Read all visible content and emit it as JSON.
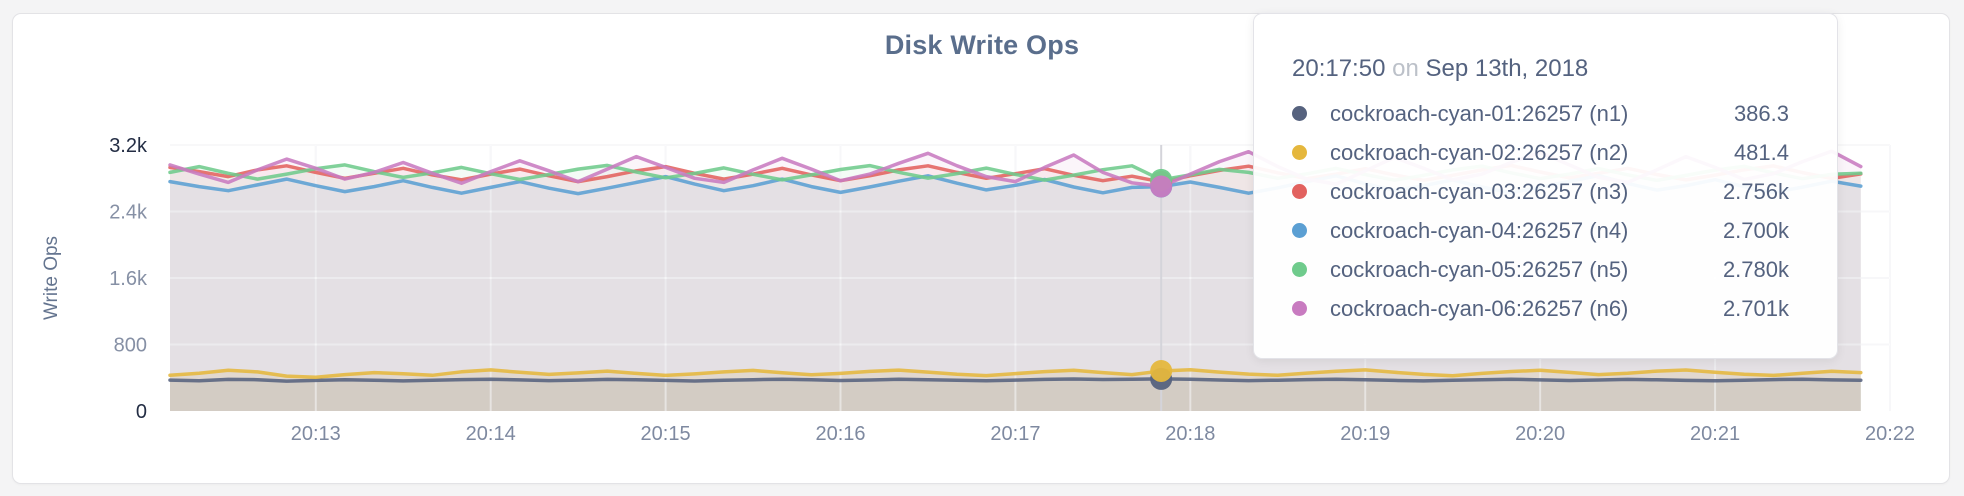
{
  "card": {
    "kind": "metric-graph-panel"
  },
  "chart_data": {
    "type": "line",
    "title": "Disk Write Ops",
    "xlabel": "",
    "ylabel": "Write Ops",
    "ylim": [
      0,
      3200
    ],
    "grid": true,
    "legend_position": "tooltip-only",
    "yticks": [
      {
        "v": 0,
        "label": "0",
        "emph": true
      },
      {
        "v": 800,
        "label": "800",
        "emph": false
      },
      {
        "v": 1600,
        "label": "1.6k",
        "emph": false
      },
      {
        "v": 2400,
        "label": "2.4k",
        "emph": false
      },
      {
        "v": 3200,
        "label": "3.2k",
        "emph": true
      }
    ],
    "xticks": [
      {
        "t": 780,
        "label": "20:13"
      },
      {
        "t": 840,
        "label": "20:14"
      },
      {
        "t": 900,
        "label": "20:15"
      },
      {
        "t": 960,
        "label": "20:16"
      },
      {
        "t": 1020,
        "label": "20:17"
      },
      {
        "t": 1080,
        "label": "20:18"
      },
      {
        "t": 1140,
        "label": "20:19"
      },
      {
        "t": 1200,
        "label": "20:20"
      },
      {
        "t": 1260,
        "label": "20:21"
      },
      {
        "t": 1320,
        "label": "20:22"
      }
    ],
    "x_domain_s": [
      730,
      1320
    ],
    "sample_start_s": 730,
    "sample_step_s": 10,
    "hover": {
      "time_s": 1070,
      "index": 34
    },
    "series": [
      {
        "id": "n1",
        "name": "cockroach-cyan-01:26257 (n1)",
        "color": "#56627e",
        "fill_opacity": 0.12,
        "values": [
          372,
          365,
          380,
          376,
          360,
          368,
          375,
          370,
          362,
          371,
          378,
          383,
          374,
          366,
          372,
          380,
          376,
          368,
          361,
          369,
          377,
          382,
          375,
          367,
          373,
          381,
          377,
          370,
          363,
          372,
          380,
          385,
          379,
          383,
          386,
          381,
          373,
          366,
          371,
          378,
          383,
          376,
          368,
          362,
          370,
          377,
          382,
          374,
          367,
          373,
          380,
          375,
          368,
          363,
          371,
          378,
          382,
          374,
          369
        ]
      },
      {
        "id": "n2",
        "name": "cockroach-cyan-02:26257 (n2)",
        "color": "#e5b73d",
        "fill_opacity": 0.15,
        "values": [
          430,
          455,
          490,
          470,
          420,
          405,
          438,
          462,
          448,
          430,
          472,
          495,
          465,
          440,
          458,
          480,
          452,
          428,
          446,
          470,
          488,
          460,
          435,
          452,
          476,
          492,
          468,
          442,
          426,
          450,
          474,
          490,
          462,
          438,
          481,
          496,
          468,
          444,
          430,
          456,
          478,
          494,
          466,
          440,
          425,
          452,
          475,
          490,
          464,
          438,
          455,
          480,
          493,
          467,
          441,
          428,
          453,
          477,
          462
        ]
      },
      {
        "id": "n3",
        "name": "cockroach-cyan-03:26257 (n3)",
        "color": "#e2625f",
        "fill_opacity": 0.075,
        "values": [
          2930,
          2880,
          2820,
          2900,
          2950,
          2870,
          2800,
          2860,
          2920,
          2840,
          2780,
          2850,
          2910,
          2830,
          2760,
          2820,
          2890,
          2940,
          2860,
          2790,
          2850,
          2920,
          2840,
          2770,
          2830,
          2900,
          2950,
          2870,
          2800,
          2855,
          2915,
          2835,
          2770,
          2825,
          2756,
          2830,
          2895,
          2945,
          2865,
          2795,
          2850,
          2915,
          2840,
          2775,
          2835,
          2900,
          2955,
          2875,
          2805,
          2860,
          2920,
          2845,
          2780,
          2838,
          2902,
          2948,
          2868,
          2798,
          2852
        ]
      },
      {
        "id": "n4",
        "name": "cockroach-cyan-04:26257 (n4)",
        "color": "#5b9fd3",
        "fill_opacity": 0.075,
        "values": [
          2760,
          2700,
          2650,
          2720,
          2790,
          2710,
          2640,
          2700,
          2770,
          2690,
          2620,
          2690,
          2760,
          2680,
          2615,
          2680,
          2750,
          2820,
          2730,
          2650,
          2710,
          2790,
          2700,
          2630,
          2695,
          2765,
          2830,
          2740,
          2660,
          2715,
          2785,
          2695,
          2625,
          2690,
          2700,
          2755,
          2690,
          2620,
          2685,
          2760,
          2830,
          2735,
          2655,
          2710,
          2780,
          2695,
          2625,
          2692,
          2762,
          2832,
          2738,
          2658,
          2712,
          2782,
          2698,
          2628,
          2694,
          2764,
          2705
        ]
      },
      {
        "id": "n5",
        "name": "cockroach-cyan-05:26257 (n5)",
        "color": "#6fcb8c",
        "fill_opacity": 0.075,
        "values": [
          2870,
          2940,
          2860,
          2790,
          2850,
          2915,
          2960,
          2880,
          2810,
          2865,
          2930,
          2855,
          2785,
          2845,
          2910,
          2955,
          2875,
          2805,
          2858,
          2925,
          2848,
          2780,
          2840,
          2905,
          2952,
          2872,
          2802,
          2856,
          2922,
          2846,
          2778,
          2838,
          2903,
          2950,
          2780,
          2840,
          2906,
          2870,
          2800,
          2854,
          2918,
          2844,
          2776,
          2836,
          2900,
          2946,
          2866,
          2796,
          2850,
          2916,
          2842,
          2774,
          2834,
          2898,
          2944,
          2864,
          2794,
          2848,
          2860
        ]
      },
      {
        "id": "n6",
        "name": "cockroach-cyan-06:26257 (n6)",
        "color": "#c87bc0",
        "fill_opacity": 0.075,
        "values": [
          2960,
          2850,
          2750,
          2900,
          3030,
          2920,
          2790,
          2870,
          2990,
          2860,
          2740,
          2880,
          3010,
          2890,
          2760,
          2910,
          3060,
          2930,
          2800,
          2750,
          2900,
          3040,
          2910,
          2770,
          2850,
          2980,
          3100,
          2950,
          2820,
          2760,
          2930,
          3080,
          2870,
          2745,
          2701,
          2850,
          3000,
          3120,
          2940,
          2790,
          2730,
          2890,
          3050,
          2920,
          2780,
          2850,
          2990,
          3110,
          2960,
          2810,
          2750,
          2900,
          3060,
          2930,
          2785,
          2855,
          3000,
          3125,
          2940
        ]
      }
    ]
  },
  "tooltip": {
    "time": "20:17:50",
    "preposition": "on",
    "date": "Sep 13th, 2018",
    "rows": [
      {
        "label": "cockroach-cyan-01:26257 (n1)",
        "value": "386.3",
        "color": "#56627e"
      },
      {
        "label": "cockroach-cyan-02:26257 (n2)",
        "value": "481.4",
        "color": "#e5b73d"
      },
      {
        "label": "cockroach-cyan-03:26257 (n3)",
        "value": "2.756k",
        "color": "#e2625f"
      },
      {
        "label": "cockroach-cyan-04:26257 (n4)",
        "value": "2.700k",
        "color": "#5b9fd3"
      },
      {
        "label": "cockroach-cyan-05:26257 (n5)",
        "value": "2.780k",
        "color": "#6fcb8c"
      },
      {
        "label": "cockroach-cyan-06:26257 (n6)",
        "value": "2.701k",
        "color": "#c87bc0"
      }
    ]
  }
}
